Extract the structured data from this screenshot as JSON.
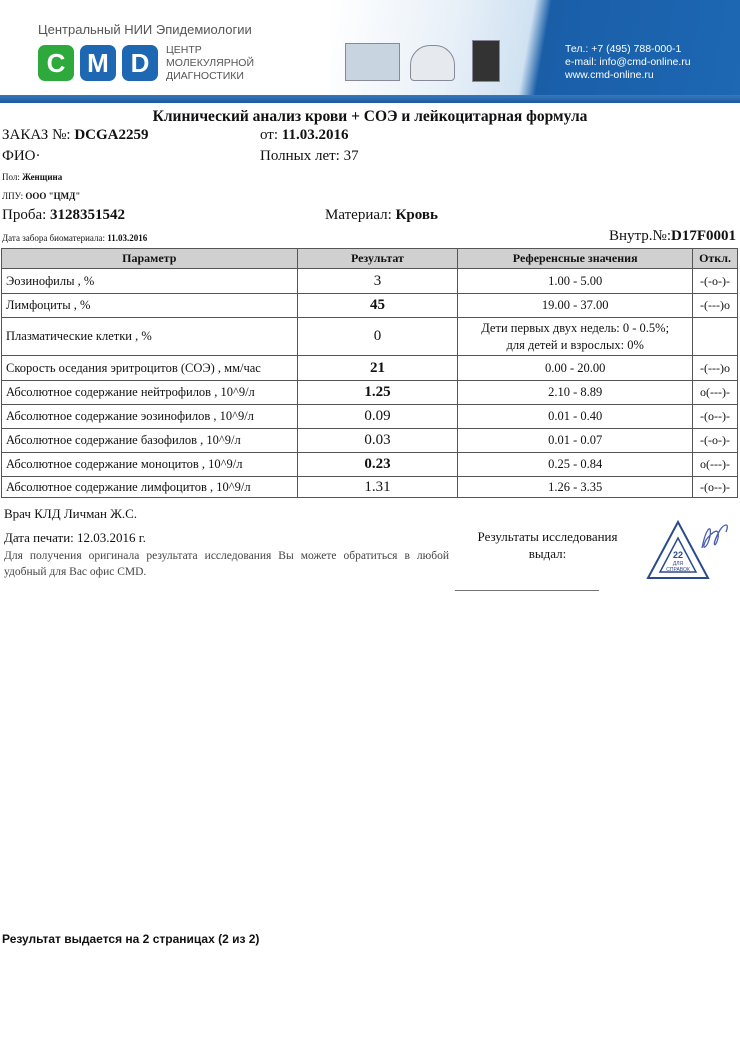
{
  "header": {
    "institute": "Центральный НИИ Эпидемиологии",
    "logo_letters": [
      "C",
      "M",
      "D"
    ],
    "center_name": [
      "ЦЕНТР",
      "МОЛЕКУЛЯРНОЙ",
      "ДИАГНОСТИКИ"
    ],
    "contacts": [
      "Тел.: +7 (495) 788-000-1",
      "e-mail: info@cmd-online.ru",
      "www.cmd-online.ru"
    ],
    "colors": {
      "green": "#2eaa3c",
      "blue": "#1d67b3"
    }
  },
  "title": "Клинический анализ крови + СОЭ и лейкоцитарная формула",
  "order": {
    "label": "ЗАКАЗ №:",
    "value": "DCGA2259",
    "date_label": "от:",
    "date": "11.03.2016"
  },
  "patient": {
    "fio_label": "ФИО·",
    "age_label": "Полных лет:",
    "age": "37",
    "sex_label": "Пол:",
    "sex": "Женщина",
    "lpu_label": "ЛПУ:",
    "lpu": "ООО \"ЦМД\""
  },
  "sample": {
    "label": "Проба:",
    "value": "3128351542",
    "material_label": "Материал:",
    "material": "Кровь",
    "collect_label": "Дата забора биоматериала:",
    "collect_date": "11.03.2016",
    "internal_label": "Внутр.№:",
    "internal": "D17F0001"
  },
  "table": {
    "headers": [
      "Параметр",
      "Результат",
      "Референсные значения",
      "Откл."
    ],
    "rows": [
      {
        "param": "Эозинофилы , %",
        "result": "3",
        "ref": "1.00 - 5.00",
        "dev": "-(-о-)-",
        "bold": false
      },
      {
        "param": "Лимфоциты , %",
        "result": "45",
        "ref": "19.00 - 37.00",
        "dev": "-(---)о",
        "bold": true
      },
      {
        "param": "Плазматические клетки , %",
        "result": "0",
        "ref": "Дети первых двух недель: 0 - 0.5%;",
        "ref2": "для детей и взрослых: 0%",
        "dev": "",
        "bold": false
      },
      {
        "param": "Скорость оседания эритроцитов (СОЭ) , мм/час",
        "result": "21",
        "ref": "0.00 - 20.00",
        "dev": "-(---)о",
        "bold": true
      },
      {
        "param": "Абсолютное содержание нейтрофилов , 10^9/л",
        "result": "1.25",
        "ref": "2.10 - 8.89",
        "dev": "о(---)-",
        "bold": true
      },
      {
        "param": "Абсолютное содержание эозинофилов , 10^9/л",
        "result": "0.09",
        "ref": "0.01 - 0.40",
        "dev": "-(о--)-",
        "bold": false
      },
      {
        "param": "Абсолютное содержание базофилов , 10^9/л",
        "result": "0.03",
        "ref": "0.01 - 0.07",
        "dev": "-(-о-)-",
        "bold": false
      },
      {
        "param": "Абсолютное содержание моноцитов , 10^9/л",
        "result": "0.23",
        "ref": "0.25 - 0.84",
        "dev": "о(---)-",
        "bold": true
      },
      {
        "param": "Абсолютное содержание лимфоцитов , 10^9/л",
        "result": "1.31",
        "ref": "1.26 - 3.35",
        "dev": "-(о--)-",
        "bold": false
      }
    ]
  },
  "footer": {
    "doctor": "Врач КЛД Личман Ж.С.",
    "print_date": "Дата печати: 12.03.2016 г.",
    "note": "Для получения оригинала результата исследования Вы можете обратиться в любой удобный для Вас офис CMD.",
    "issued_by": [
      "Результаты исследования",
      "выдал:"
    ],
    "signature_line": "________________________",
    "stamp_text": [
      "22",
      "ДЛЯ",
      "СПРАВОК"
    ],
    "pages": "Результат выдается на 2 страницах (2 из 2)"
  }
}
